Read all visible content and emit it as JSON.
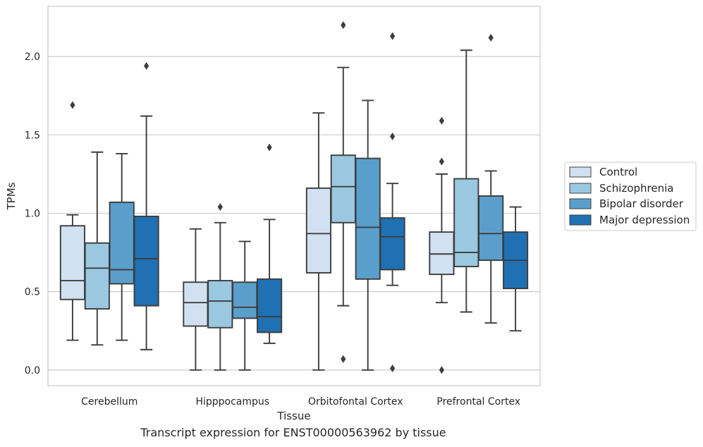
{
  "caption": "Transcript expression for ENST00000563962 by tissue",
  "chart_data": {
    "type": "box",
    "xlabel": "Tissue",
    "ylabel": "TPMs",
    "ylim": [
      -0.1,
      2.32
    ],
    "yticks": [
      0.0,
      0.5,
      1.0,
      1.5,
      2.0
    ],
    "ytick_labels": [
      "0.0",
      "0.5",
      "1.0",
      "1.5",
      "2.0"
    ],
    "grid": "horizontal",
    "legend_position": "right",
    "categories": [
      "Cerebellum",
      "Hipppocampus",
      "Orbitofontal Cortex",
      "Prefrontal Cortex"
    ],
    "series": [
      {
        "name": "Control",
        "color": "#d1e1f1",
        "boxes": [
          {
            "whislo": 0.19,
            "q1": 0.45,
            "med": 0.57,
            "q3": 0.92,
            "whishi": 0.99,
            "fliers": [
              1.69
            ]
          },
          {
            "whislo": 0.0,
            "q1": 0.28,
            "med": 0.43,
            "q3": 0.56,
            "whishi": 0.9,
            "fliers": []
          },
          {
            "whislo": 0.0,
            "q1": 0.62,
            "med": 0.87,
            "q3": 1.16,
            "whishi": 1.64,
            "fliers": []
          },
          {
            "whislo": 0.43,
            "q1": 0.61,
            "med": 0.74,
            "q3": 0.88,
            "whishi": 1.25,
            "fliers": [
              1.33,
              1.59,
              0.0
            ]
          }
        ]
      },
      {
        "name": "Schizophrenia",
        "color": "#9ac8e0",
        "boxes": [
          {
            "whislo": 0.16,
            "q1": 0.39,
            "med": 0.65,
            "q3": 0.81,
            "whishi": 1.39,
            "fliers": []
          },
          {
            "whislo": 0.0,
            "q1": 0.27,
            "med": 0.44,
            "q3": 0.57,
            "whishi": 0.94,
            "fliers": [
              1.04
            ]
          },
          {
            "whislo": 0.41,
            "q1": 0.94,
            "med": 1.17,
            "q3": 1.37,
            "whishi": 1.93,
            "fliers": [
              2.2,
              0.07
            ]
          },
          {
            "whislo": 0.37,
            "q1": 0.66,
            "med": 0.75,
            "q3": 1.22,
            "whishi": 2.04,
            "fliers": []
          }
        ]
      },
      {
        "name": "Bipolar disorder",
        "color": "#5a9fcc",
        "boxes": [
          {
            "whislo": 0.19,
            "q1": 0.55,
            "med": 0.64,
            "q3": 1.07,
            "whishi": 1.38,
            "fliers": []
          },
          {
            "whislo": 0.0,
            "q1": 0.33,
            "med": 0.4,
            "q3": 0.56,
            "whishi": 0.82,
            "fliers": []
          },
          {
            "whislo": 0.0,
            "q1": 0.58,
            "med": 0.91,
            "q3": 1.35,
            "whishi": 1.72,
            "fliers": []
          },
          {
            "whislo": 0.3,
            "q1": 0.7,
            "med": 0.87,
            "q3": 1.11,
            "whishi": 1.27,
            "fliers": [
              2.12
            ]
          }
        ]
      },
      {
        "name": "Major depression",
        "color": "#2070b4",
        "boxes": [
          {
            "whislo": 0.13,
            "q1": 0.41,
            "med": 0.71,
            "q3": 0.98,
            "whishi": 1.62,
            "fliers": [
              1.94
            ]
          },
          {
            "whislo": 0.17,
            "q1": 0.24,
            "med": 0.34,
            "q3": 0.58,
            "whishi": 0.96,
            "fliers": [
              1.42
            ]
          },
          {
            "whislo": 0.54,
            "q1": 0.64,
            "med": 0.85,
            "q3": 0.97,
            "whishi": 1.19,
            "fliers": [
              2.13,
              1.49,
              0.01
            ]
          },
          {
            "whislo": 0.25,
            "q1": 0.52,
            "med": 0.7,
            "q3": 0.88,
            "whishi": 1.04,
            "fliers": []
          }
        ]
      }
    ]
  }
}
